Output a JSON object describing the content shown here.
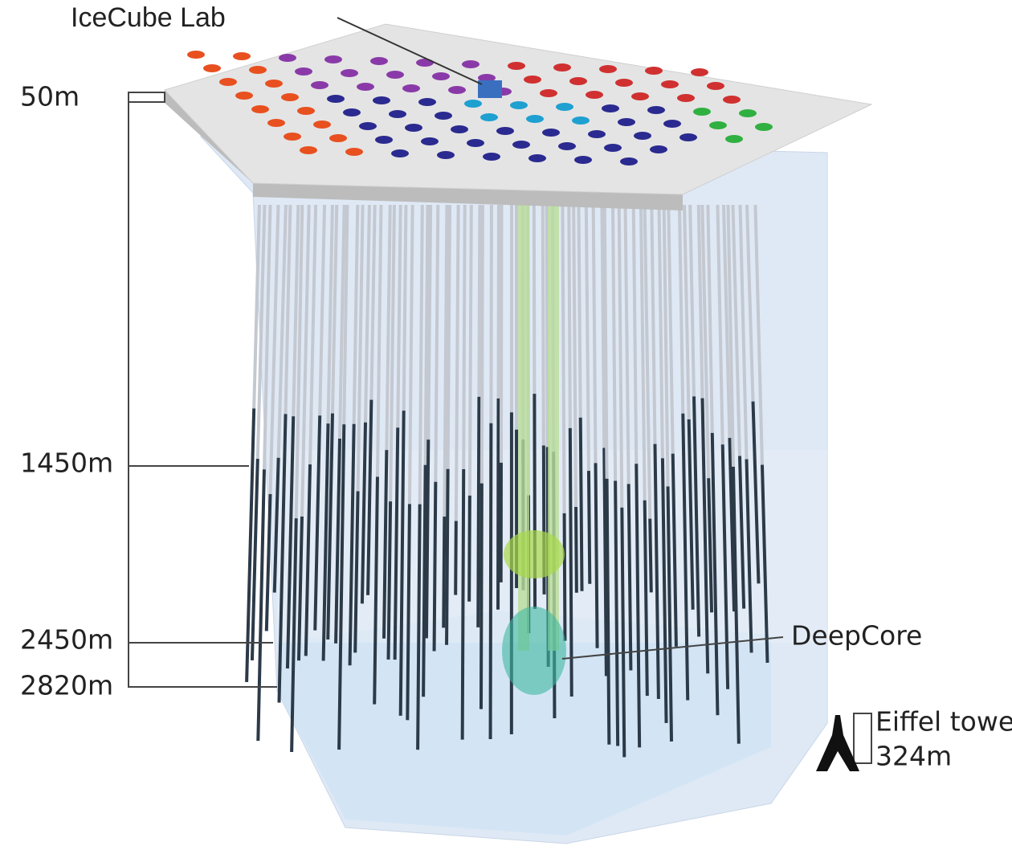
{
  "labels": {
    "lab": "IceCube Lab",
    "depths": [
      "50m",
      "1450m",
      "2450m",
      "2820m"
    ],
    "deepcore": "DeepCore",
    "eiffel": "Eiffel tower",
    "eiffel_height": "324m"
  }
}
